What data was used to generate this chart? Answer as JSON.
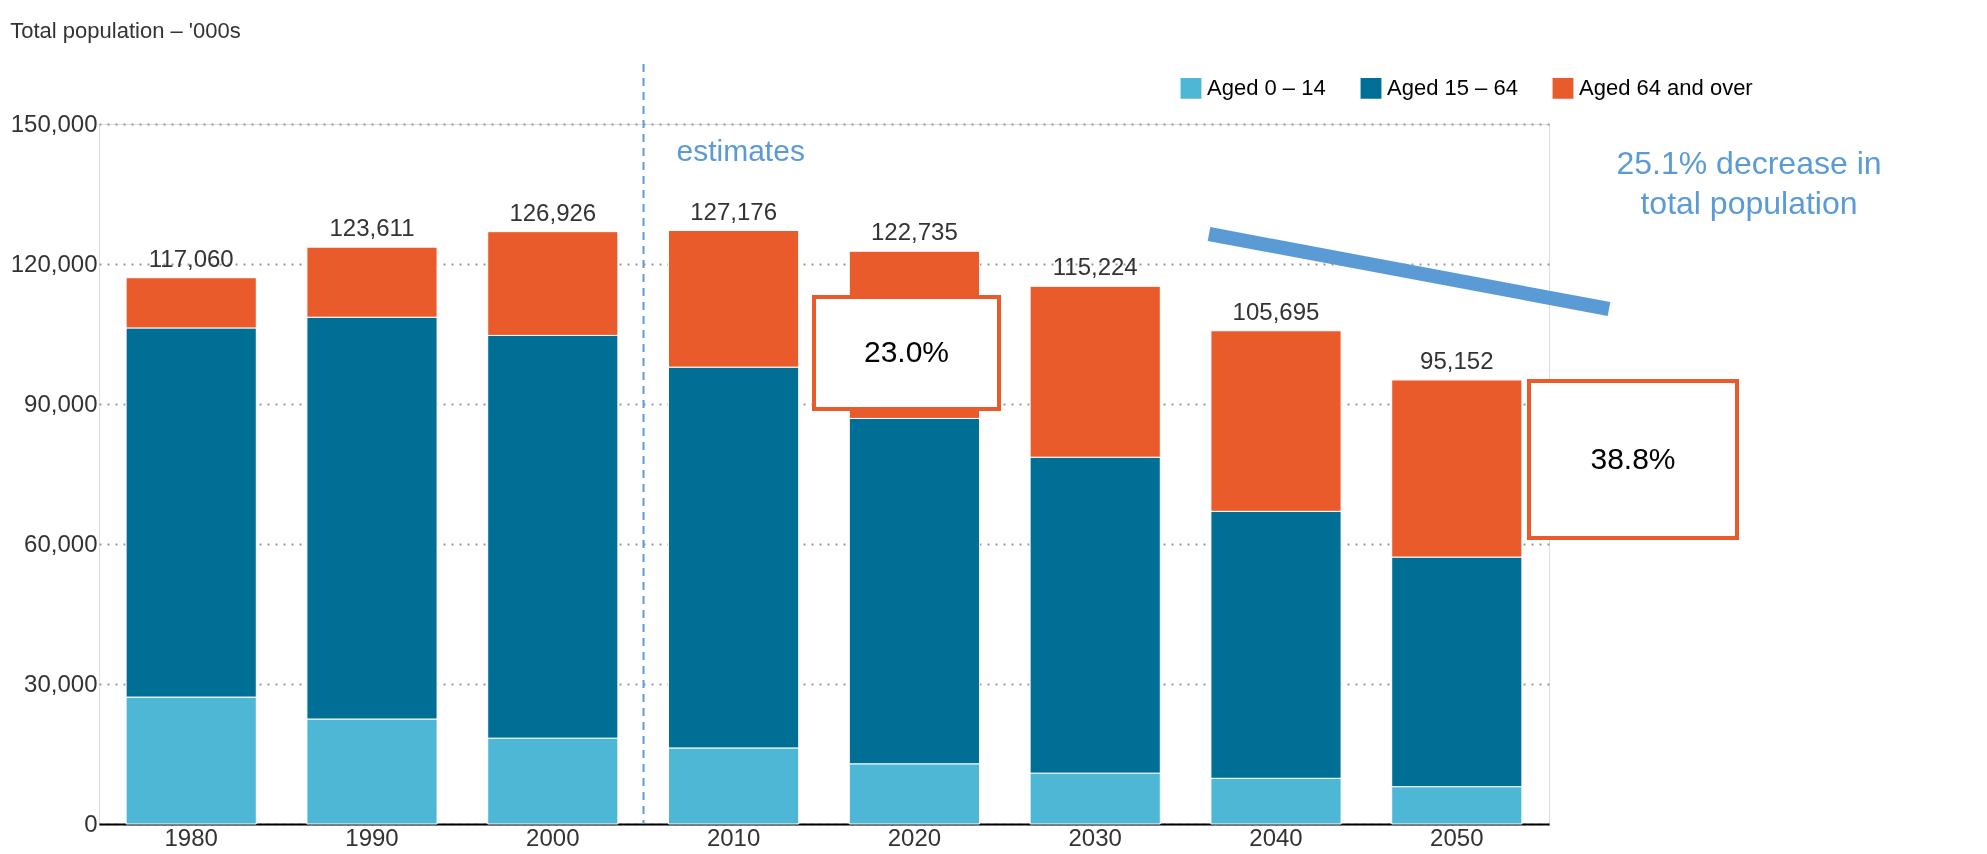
{
  "chart_data": {
    "type": "bar",
    "stacked": true,
    "title": "Total population – '000s",
    "categories": [
      "1980",
      "1990",
      "2000",
      "2010",
      "2020",
      "2030",
      "2040",
      "2050"
    ],
    "series": [
      {
        "name": "Aged 0 – 14",
        "color": "#4eb7d6",
        "values": [
          27200,
          22500,
          18400,
          16300,
          12900,
          10900,
          9800,
          8000
        ]
      },
      {
        "name": "Aged 15 – 64",
        "color": "#006f96",
        "values": [
          79100,
          86100,
          86300,
          81600,
          74000,
          67700,
          57200,
          49200
        ]
      },
      {
        "name": "Aged 64 and over",
        "color": "#ea5b2c",
        "values": [
          10760,
          15011,
          22226,
          29276,
          35835,
          36624,
          38695,
          37952
        ]
      }
    ],
    "ylim": [
      0,
      150000
    ],
    "yticks": [
      0,
      {
        "value": 30000,
        "label": "30,000"
      },
      {
        "value": 60000,
        "label": "60,000"
      },
      {
        "value": 90000,
        "label": "90,000"
      },
      {
        "value": 120000,
        "label": "120,000"
      },
      {
        "value": 150000,
        "label": "150,000"
      }
    ],
    "totals": [
      "117,060",
      "123,611",
      "126,926",
      "127,176",
      "122,735",
      "115,224",
      "105,695",
      "95,152"
    ],
    "ref_lines": [
      {
        "axis": "x",
        "value": "2010",
        "label": "estimates",
        "color": "#5b9bd5",
        "line_style": "dashed"
      }
    ],
    "annotations": [
      "23.0%",
      "38.8%",
      "25.1% decrease in total population"
    ],
    "grid": "y",
    "legend": "top right"
  }
}
